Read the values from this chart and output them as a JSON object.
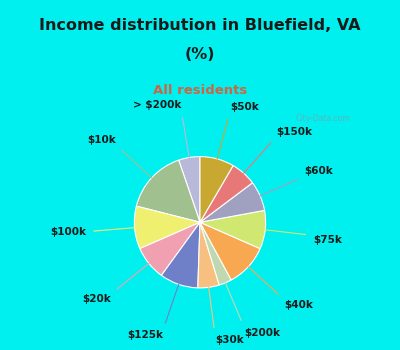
{
  "title_line1": "Income distribution in Bluefield, VA",
  "title_line2": "(%)",
  "subtitle": "All residents",
  "title_color": "#1a1a1a",
  "subtitle_color": "#cc6644",
  "bg_cyan": "#00f0f0",
  "bg_chart": "#e0f5ee",
  "labels": [
    "> $200k",
    "$10k",
    "$100k",
    "$20k",
    "$125k",
    "$30k",
    "$200k",
    "$40k",
    "$75k",
    "$60k",
    "$150k",
    "$50k"
  ],
  "values": [
    5,
    15,
    10,
    8,
    9,
    5,
    3,
    10,
    9,
    7,
    6,
    8
  ],
  "colors": [
    "#b8b8d8",
    "#a0c090",
    "#f0f070",
    "#f0a0b0",
    "#7080c8",
    "#f8c080",
    "#c0d8b0",
    "#f8a850",
    "#d0e870",
    "#a0a0c0",
    "#e87878",
    "#c8a830"
  ],
  "label_fontsize": 7.5,
  "label_color": "#1a1a1a",
  "watermark": "City-Data.com",
  "title_fontsize": 11.5,
  "subtitle_fontsize": 9.5
}
